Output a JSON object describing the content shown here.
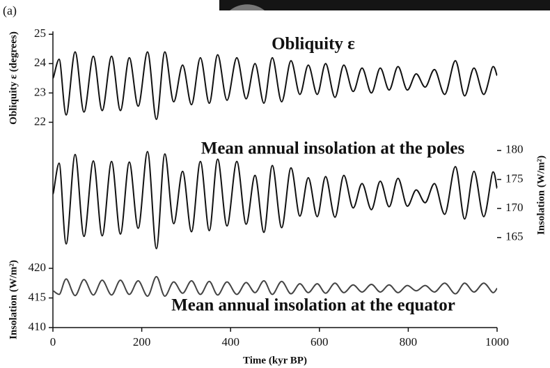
{
  "panel_label": "(a)",
  "chart_data": {
    "type": "line",
    "xlabel": "Time (kyr BP)",
    "xlim": [
      0,
      1000
    ],
    "xticks": [
      0,
      200,
      400,
      600,
      800,
      1000
    ],
    "x": [
      0,
      14,
      30,
      50,
      70,
      91,
      111,
      132,
      152,
      172,
      192,
      213,
      233,
      252,
      272,
      292,
      312,
      332,
      352,
      371,
      392,
      414,
      435,
      455,
      475,
      494,
      515,
      536,
      556,
      575,
      595,
      614,
      635,
      655,
      676,
      696,
      717,
      737,
      757,
      777,
      798,
      818,
      838,
      859,
      882,
      906,
      927,
      948,
      970,
      991,
      1000
    ],
    "series": [
      {
        "name": "Obliquity ε",
        "ylabel": "Obliquity ε (degrees)",
        "axis": "y",
        "color": "#111111",
        "ylim": [
          15,
          25.1
        ],
        "yticks": [
          22,
          23,
          24,
          25
        ],
        "values": [
          23.5,
          24.15,
          22.25,
          24.4,
          22.35,
          24.25,
          22.4,
          24.25,
          22.4,
          24.2,
          22.55,
          24.4,
          22.1,
          24.4,
          22.7,
          23.95,
          22.6,
          24.2,
          22.65,
          24.3,
          22.75,
          24.2,
          22.8,
          24.0,
          22.65,
          24.2,
          22.7,
          24.1,
          22.95,
          23.95,
          22.95,
          24.0,
          22.85,
          23.95,
          23.05,
          23.85,
          23.0,
          23.85,
          23.1,
          23.9,
          23.1,
          23.65,
          23.2,
          23.8,
          22.95,
          24.1,
          22.9,
          23.85,
          22.95,
          23.9,
          23.6
        ]
      },
      {
        "name": "Mean annual insolation at the poles",
        "ylabel": "Insolation (W/m²)",
        "axis": "y2",
        "color": "#111111",
        "ylim": [
          149.5,
          200.5
        ],
        "yticks": [
          165,
          170,
          175,
          180
        ],
        "values": [
          172.5,
          177.8,
          163.9,
          179.3,
          165.2,
          178.2,
          165.3,
          178.1,
          165.6,
          178.0,
          166.6,
          179.8,
          163.1,
          179.4,
          167.4,
          176.4,
          166.0,
          178.1,
          166.2,
          178.5,
          167.0,
          178.1,
          167.3,
          175.7,
          165.9,
          177.4,
          166.7,
          177.0,
          168.7,
          175.3,
          168.6,
          175.5,
          168.5,
          175.7,
          170.1,
          174.3,
          169.8,
          174.7,
          170.3,
          175.2,
          170.4,
          173.2,
          171.0,
          174.3,
          169.0,
          177.2,
          168.2,
          176.4,
          168.6,
          176.3,
          173.5
        ]
      },
      {
        "name": "Mean annual insolation at the equator",
        "ylabel": "Insolation (W/m²)",
        "axis": "y",
        "color": "#444444",
        "ylim": [
          410,
          460
        ],
        "yticks": [
          410,
          415,
          420
        ],
        "values": [
          416.2,
          415.6,
          418.2,
          415.4,
          418.1,
          415.5,
          418.0,
          415.5,
          418.0,
          415.6,
          417.9,
          415.3,
          418.6,
          415.3,
          417.7,
          415.8,
          417.9,
          415.6,
          417.8,
          415.5,
          417.7,
          415.6,
          417.6,
          415.9,
          417.9,
          415.6,
          417.8,
          415.7,
          417.4,
          415.9,
          417.4,
          415.8,
          417.5,
          415.9,
          417.2,
          416.0,
          417.3,
          416.0,
          417.2,
          415.9,
          417.1,
          416.2,
          417.1,
          416.0,
          417.5,
          415.7,
          417.5,
          416.0,
          417.5,
          415.9,
          416.6
        ]
      }
    ]
  }
}
